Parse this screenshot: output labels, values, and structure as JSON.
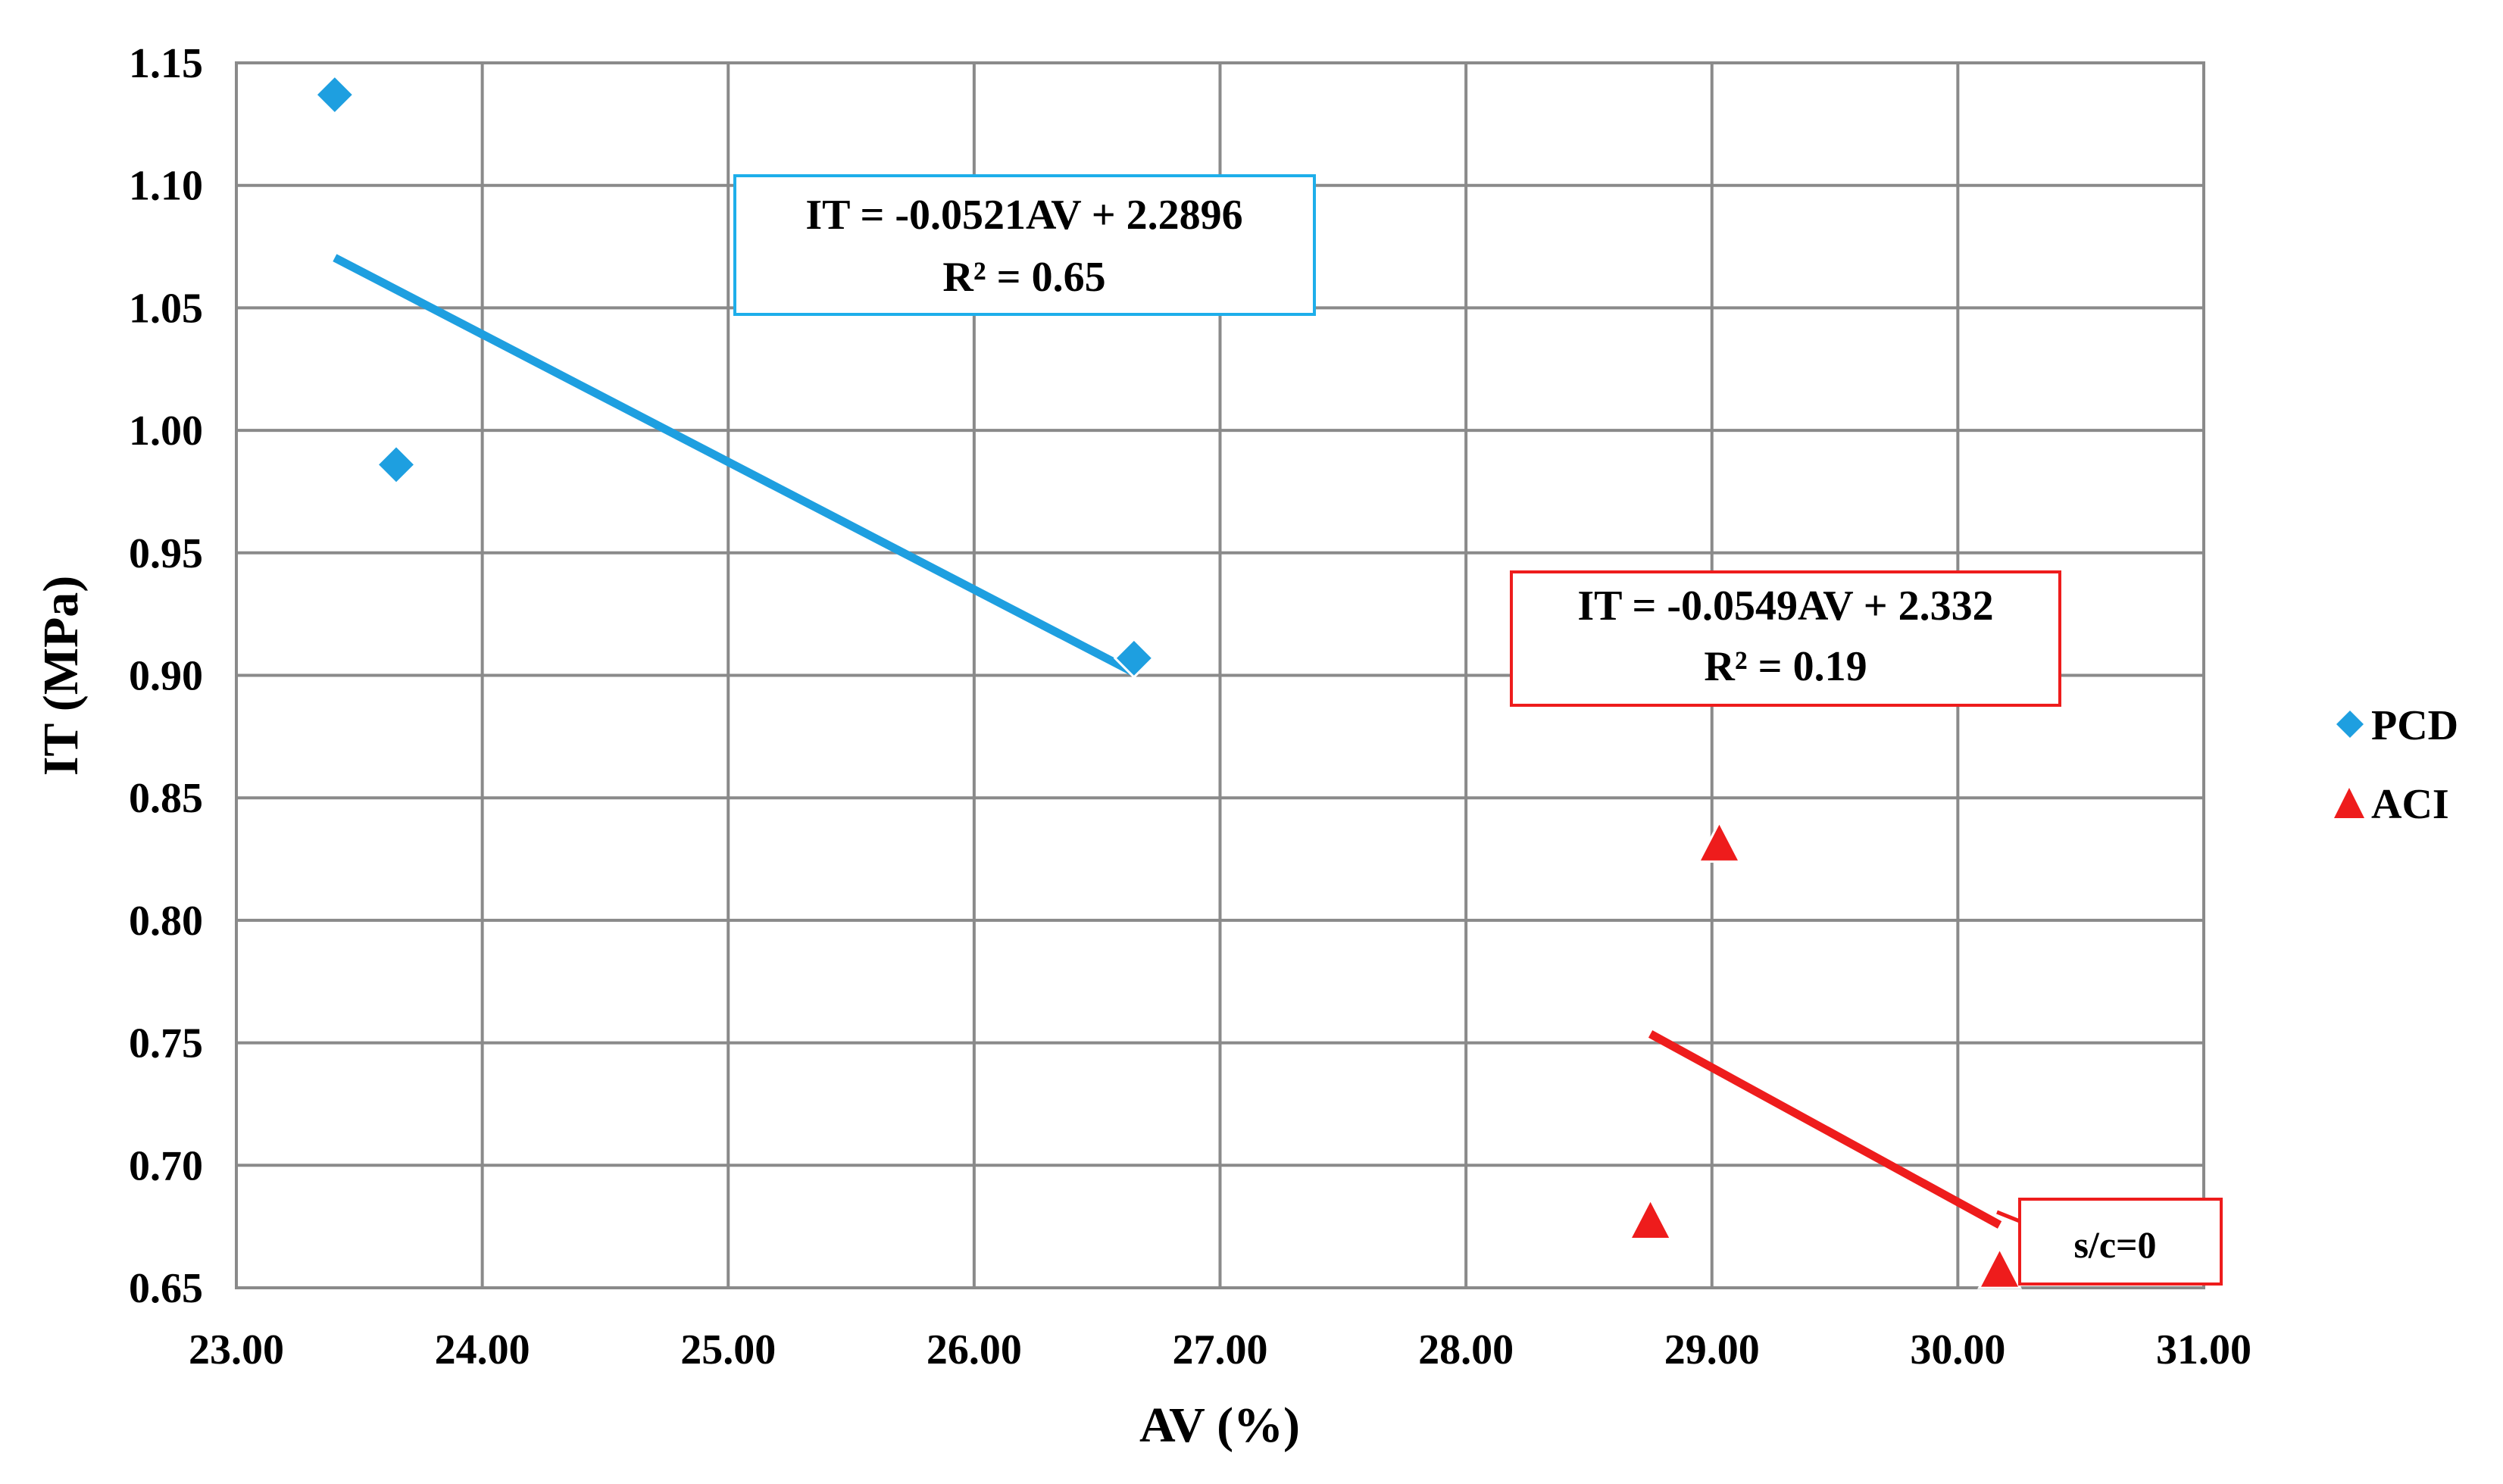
{
  "chart_data": {
    "type": "scatter",
    "xlabel": "AV (%)",
    "ylabel": "IT (MPa)",
    "xlim": [
      23.0,
      31.0
    ],
    "ylim": [
      0.65,
      1.15
    ],
    "x_ticks": [
      "23.00",
      "24.00",
      "25.00",
      "26.00",
      "27.00",
      "28.00",
      "29.00",
      "30.00",
      "31.00"
    ],
    "y_ticks": [
      "0.65",
      "0.70",
      "0.75",
      "0.80",
      "0.85",
      "0.90",
      "0.95",
      "1.00",
      "1.05",
      "1.10",
      "1.15"
    ],
    "grid": true,
    "legend_position": "right",
    "series": [
      {
        "name": "PCD",
        "marker": "diamond",
        "color": "#1E9FE0",
        "points": [
          {
            "x": 23.4,
            "y": 1.137
          },
          {
            "x": 23.65,
            "y": 0.986
          },
          {
            "x": 26.65,
            "y": 0.907
          }
        ],
        "trendline": {
          "x": [
            23.4,
            26.65
          ],
          "slope": -0.0521,
          "intercept": 2.2896
        },
        "equation": "IT = -0.0521AV + 2.2896",
        "r2": "R² = 0.65"
      },
      {
        "name": "ACI",
        "marker": "triangle",
        "color": "#EE1C1C",
        "points": [
          {
            "x": 28.75,
            "y": 0.678
          },
          {
            "x": 29.03,
            "y": 0.832
          },
          {
            "x": 30.17,
            "y": 0.658
          }
        ],
        "trendline": {
          "x": [
            28.75,
            30.17
          ],
          "slope": -0.0549,
          "intercept": 2.332
        },
        "equation": "IT = -0.0549AV + 2.332",
        "r2": "R² = 0.19"
      }
    ],
    "annotations": [
      {
        "text": "s/c=0",
        "color": "#EE1C1C"
      }
    ]
  }
}
